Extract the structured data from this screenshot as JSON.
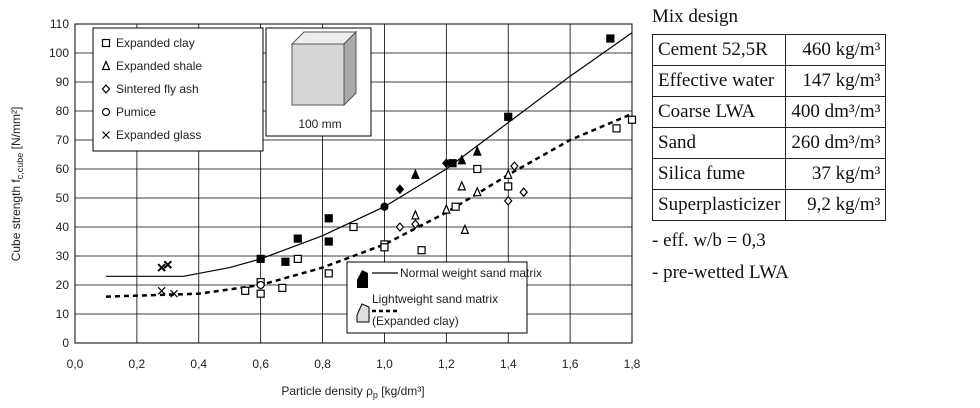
{
  "chart_data": {
    "type": "scatter",
    "ylabel": {
      "text": "Cube strength f",
      "sub": "c,cube",
      "unit": " [N/mm²]"
    },
    "xlabel": {
      "text": "Particle density ρ",
      "sub": "p",
      "unit": " [kg/dm³]"
    },
    "xlim": [
      0,
      1.8
    ],
    "ylim": [
      0,
      110
    ],
    "xticks": [
      {
        "value": 0,
        "label": "0,0"
      },
      {
        "value": 0.2,
        "label": "0,2"
      },
      {
        "value": 0.4,
        "label": "0,4"
      },
      {
        "value": 0.6,
        "label": "0,6"
      },
      {
        "value": 0.8,
        "label": "0,8"
      },
      {
        "value": 1.0,
        "label": "1,0"
      },
      {
        "value": 1.2,
        "label": "1,2"
      },
      {
        "value": 1.4,
        "label": "1,4"
      },
      {
        "value": 1.6,
        "label": "1,6"
      },
      {
        "value": 1.8,
        "label": "1,8"
      }
    ],
    "yticks": [
      0,
      10,
      20,
      30,
      40,
      50,
      60,
      70,
      80,
      90,
      100,
      110
    ],
    "grid": true,
    "inset_label": "100 mm",
    "series": [
      {
        "name": "Expanded clay",
        "marker": "square",
        "x": [
          0.6,
          0.68,
          0.72,
          0.82,
          0.82,
          1.22,
          1.4,
          1.73,
          0.55,
          0.6,
          0.6,
          0.67,
          0.72,
          0.82,
          0.9,
          1.0,
          1.0,
          1.12,
          1.23,
          1.3,
          1.4,
          1.75,
          1.8
        ],
        "y": [
          29,
          28,
          36,
          43,
          35,
          62,
          78,
          105,
          18,
          17,
          21,
          19,
          29,
          24,
          40,
          34,
          33,
          32,
          47,
          60,
          54,
          74,
          77
        ],
        "filled": [
          true,
          true,
          true,
          true,
          true,
          true,
          true,
          true,
          false,
          false,
          false,
          false,
          false,
          false,
          false,
          false,
          false,
          false,
          false,
          false,
          false,
          false,
          false
        ]
      },
      {
        "name": "Expanded shale",
        "marker": "triangle",
        "x": [
          1.1,
          1.25,
          1.3,
          1.1,
          1.2,
          1.25,
          1.26,
          1.3,
          1.4
        ],
        "y": [
          58,
          63,
          66,
          44,
          46,
          54,
          39,
          52,
          58
        ],
        "filled": [
          true,
          true,
          true,
          false,
          false,
          false,
          false,
          false,
          false
        ]
      },
      {
        "name": "Sintered fly ash",
        "marker": "diamond",
        "x": [
          1.05,
          1.2,
          1.05,
          1.1,
          1.4,
          1.42,
          1.45
        ],
        "y": [
          53,
          62,
          40,
          41,
          49,
          61,
          52
        ],
        "filled": [
          true,
          true,
          false,
          false,
          false,
          false,
          false
        ]
      },
      {
        "name": "Pumice",
        "marker": "circle",
        "x": [
          1.0,
          0.6
        ],
        "y": [
          47,
          20
        ],
        "filled": [
          true,
          false
        ]
      },
      {
        "name": "Expanded glass",
        "marker": "cross",
        "x": [
          0.28,
          0.3,
          0.28,
          0.32
        ],
        "y": [
          26,
          27,
          18,
          17
        ],
        "filled": [
          true,
          true,
          false,
          false
        ]
      }
    ],
    "curves": [
      {
        "name": "Normal weight sand matrix",
        "style": "solid",
        "x": [
          0.1,
          0.35,
          0.5,
          0.6,
          0.8,
          1.0,
          1.2,
          1.4,
          1.6,
          1.8
        ],
        "y": [
          23,
          23,
          26,
          29,
          37,
          47,
          60,
          76,
          92,
          107
        ]
      },
      {
        "name": "Lightweight sand matrix",
        "sublabel": "(Expanded clay)",
        "style": "dashed",
        "x": [
          0.1,
          0.4,
          0.6,
          0.8,
          1.0,
          1.2,
          1.4,
          1.6,
          1.8
        ],
        "y": [
          16,
          17,
          20,
          26,
          34,
          45,
          58,
          70,
          79
        ]
      }
    ]
  },
  "mix_design": {
    "title": "Mix design",
    "rows": [
      [
        "Cement 52,5R",
        "460 kg/m³"
      ],
      [
        "Effective water",
        "147 kg/m³"
      ],
      [
        "Coarse LWA",
        "400 dm³/m³"
      ],
      [
        "Sand",
        "260 dm³/m³"
      ],
      [
        "Silica fume",
        "37 kg/m³"
      ],
      [
        "Superplasticizer",
        "9,2 kg/m³"
      ]
    ],
    "notes": [
      "- eff. w/b = 0,3",
      "- pre-wetted LWA"
    ]
  }
}
